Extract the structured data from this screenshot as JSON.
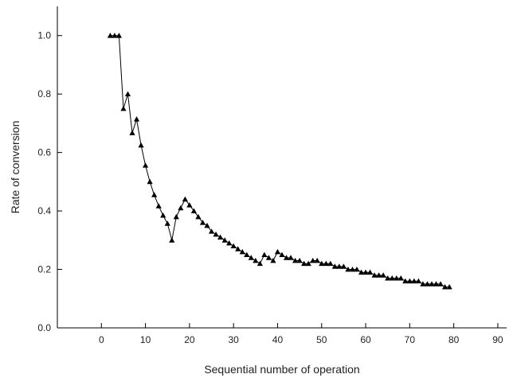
{
  "chart_data": {
    "type": "line",
    "title": "",
    "xlabel": "Sequential number of operation",
    "ylabel": "Rate of conversion",
    "xlim": [
      -10,
      92
    ],
    "ylim": [
      0,
      1.1
    ],
    "x_ticks": [
      0,
      10,
      20,
      30,
      40,
      50,
      60,
      70,
      80,
      90
    ],
    "x_tick_labels": [
      "0",
      "10",
      "20",
      "30",
      "40",
      "50",
      "60",
      "70",
      "80",
      "90"
    ],
    "y_ticks": [
      0.0,
      0.2,
      0.4,
      0.6,
      0.8,
      1.0
    ],
    "y_tick_labels": [
      "0.0",
      "0.2",
      "0.4",
      "0.6",
      "0.8",
      "1.0"
    ],
    "grid": false,
    "marker": "triangle",
    "series_color": "#000000",
    "series": [
      {
        "x": [
          2,
          3,
          4,
          5,
          6,
          7,
          8,
          9,
          10,
          11,
          12,
          13,
          14,
          15,
          16,
          17,
          18,
          19,
          20,
          21,
          22,
          23,
          24,
          25,
          26,
          27,
          28,
          29,
          30,
          31,
          32,
          33,
          34,
          35,
          36,
          37,
          38,
          39,
          40,
          41,
          42,
          43,
          44,
          45,
          46,
          47,
          48,
          49,
          50,
          51,
          52,
          53,
          54,
          55,
          56,
          57,
          58,
          59,
          60,
          61,
          62,
          63,
          64,
          65,
          66,
          67,
          68,
          69,
          70,
          71,
          72,
          73,
          74,
          75,
          76,
          77,
          78,
          79
        ],
        "y": [
          1.0,
          1.0,
          1.0,
          0.75,
          0.8,
          0.667,
          0.714,
          0.625,
          0.556,
          0.5,
          0.455,
          0.417,
          0.385,
          0.357,
          0.3,
          0.38,
          0.41,
          0.44,
          0.42,
          0.4,
          0.38,
          0.36,
          0.35,
          0.33,
          0.32,
          0.31,
          0.3,
          0.29,
          0.28,
          0.27,
          0.26,
          0.25,
          0.24,
          0.23,
          0.22,
          0.25,
          0.24,
          0.23,
          0.26,
          0.25,
          0.24,
          0.24,
          0.23,
          0.23,
          0.22,
          0.22,
          0.23,
          0.23,
          0.22,
          0.22,
          0.22,
          0.21,
          0.21,
          0.21,
          0.2,
          0.2,
          0.2,
          0.19,
          0.19,
          0.19,
          0.18,
          0.18,
          0.18,
          0.17,
          0.17,
          0.17,
          0.17,
          0.16,
          0.16,
          0.16,
          0.16,
          0.15,
          0.15,
          0.15,
          0.15,
          0.15,
          0.14,
          0.14
        ]
      }
    ]
  }
}
